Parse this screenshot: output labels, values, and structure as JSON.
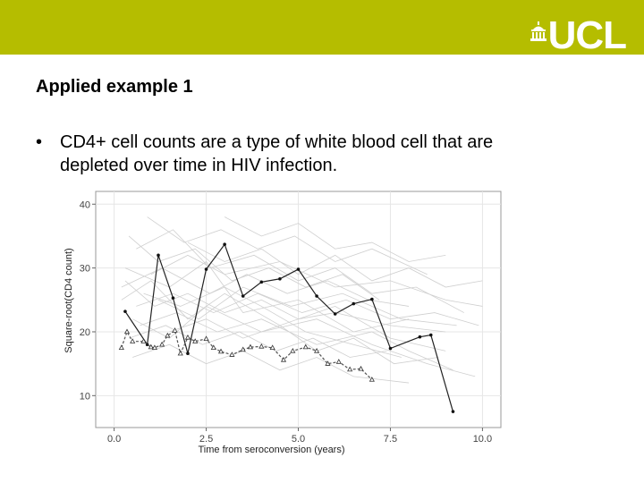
{
  "header": {
    "logo_text": "UCL"
  },
  "slide": {
    "title": "Applied example 1",
    "bullet_symbol": "•",
    "bullet_text": "CD4+ cell counts are a type of white blood cell that are depleted over time in HIV infection."
  },
  "colors": {
    "banner": "#b5bd00",
    "series_solid": "#222222",
    "series_dashed": "#555555",
    "spaghetti": "#cfcfcf"
  },
  "chart_data": {
    "type": "line",
    "xlabel": "Time from seroconversion (years)",
    "ylabel": "Square-root(CD4 count)",
    "xlim": [
      -0.5,
      10.5
    ],
    "ylim": [
      5,
      42
    ],
    "x_ticks": [
      0.0,
      2.5,
      5.0,
      7.5,
      10.0
    ],
    "x_tick_labels": [
      "0.0",
      "2.5",
      "5.0",
      "7.5",
      "10.0"
    ],
    "y_ticks": [
      10,
      20,
      30,
      40
    ],
    "y_tick_labels": [
      "10",
      "20",
      "30",
      "40"
    ],
    "grid": true,
    "series": [
      {
        "style": "solid-circle",
        "points": [
          [
            0.3,
            23.2
          ],
          [
            0.9,
            18.0
          ],
          [
            1.2,
            32.0
          ],
          [
            1.6,
            25.3
          ],
          [
            2.0,
            16.6
          ],
          [
            2.5,
            29.8
          ],
          [
            3.0,
            33.7
          ],
          [
            3.5,
            25.6
          ],
          [
            4.0,
            27.8
          ],
          [
            4.5,
            28.3
          ],
          [
            5.0,
            29.8
          ],
          [
            5.5,
            25.6
          ],
          [
            6.0,
            22.8
          ],
          [
            6.5,
            24.4
          ],
          [
            7.0,
            25.1
          ],
          [
            7.5,
            17.4
          ],
          [
            8.3,
            19.2
          ],
          [
            8.6,
            19.5
          ],
          [
            9.2,
            7.5
          ]
        ]
      },
      {
        "style": "dashed-triangle",
        "points": [
          [
            0.2,
            17.5
          ],
          [
            0.35,
            20.0
          ],
          [
            0.5,
            18.5
          ],
          [
            0.8,
            18.5
          ],
          [
            1.0,
            17.6
          ],
          [
            1.1,
            17.5
          ],
          [
            1.3,
            18.0
          ],
          [
            1.45,
            19.4
          ],
          [
            1.65,
            20.2
          ],
          [
            1.8,
            16.6
          ],
          [
            2.0,
            19.1
          ],
          [
            2.2,
            18.5
          ],
          [
            2.5,
            18.9
          ],
          [
            2.7,
            17.5
          ],
          [
            2.9,
            16.9
          ],
          [
            3.2,
            16.4
          ],
          [
            3.5,
            17.2
          ],
          [
            3.7,
            17.6
          ],
          [
            4.0,
            17.7
          ],
          [
            4.3,
            17.5
          ],
          [
            4.6,
            15.6
          ],
          [
            4.85,
            17.0
          ],
          [
            5.2,
            17.6
          ],
          [
            5.5,
            17.0
          ],
          [
            5.8,
            15.0
          ],
          [
            6.1,
            15.3
          ],
          [
            6.4,
            14.1
          ],
          [
            6.7,
            14.2
          ],
          [
            7.0,
            12.5
          ]
        ]
      }
    ],
    "background_series": [
      [
        [
          0.2,
          25
        ],
        [
          1.0,
          28
        ],
        [
          2.0,
          22
        ],
        [
          3.0,
          26
        ],
        [
          4.5,
          21
        ],
        [
          6.0,
          24
        ],
        [
          7.5,
          19
        ],
        [
          9.0,
          17
        ]
      ],
      [
        [
          0.3,
          30
        ],
        [
          1.5,
          27
        ],
        [
          2.5,
          31
        ],
        [
          3.5,
          23
        ],
        [
          5.0,
          25
        ],
        [
          6.5,
          20
        ],
        [
          8.0,
          22
        ]
      ],
      [
        [
          0.5,
          22
        ],
        [
          1.5,
          19
        ],
        [
          2.5,
          24
        ],
        [
          4.0,
          20
        ],
        [
          5.5,
          22
        ],
        [
          7.0,
          18
        ],
        [
          8.5,
          15
        ],
        [
          9.8,
          13
        ]
      ],
      [
        [
          0.4,
          35
        ],
        [
          1.2,
          31
        ],
        [
          2.2,
          33
        ],
        [
          3.2,
          28
        ],
        [
          4.2,
          30
        ],
        [
          5.2,
          27
        ],
        [
          6.2,
          29
        ],
        [
          7.2,
          25
        ]
      ],
      [
        [
          0.8,
          26
        ],
        [
          1.8,
          24
        ],
        [
          3.0,
          27
        ],
        [
          4.0,
          24
        ],
        [
          5.2,
          20
        ],
        [
          6.5,
          18
        ],
        [
          7.8,
          16
        ]
      ],
      [
        [
          0.6,
          33
        ],
        [
          1.6,
          36
        ],
        [
          2.6,
          30
        ],
        [
          3.8,
          32
        ],
        [
          5.0,
          28
        ],
        [
          6.0,
          30
        ],
        [
          7.0,
          26
        ],
        [
          8.2,
          27
        ],
        [
          9.5,
          23
        ]
      ],
      [
        [
          0.7,
          21
        ],
        [
          1.7,
          23
        ],
        [
          2.8,
          20
        ],
        [
          4.0,
          22
        ],
        [
          5.5,
          18
        ],
        [
          7.0,
          20
        ],
        [
          8.0,
          17
        ],
        [
          9.2,
          14
        ]
      ],
      [
        [
          0.3,
          28
        ],
        [
          1.1,
          24
        ],
        [
          2.0,
          26
        ],
        [
          3.0,
          23
        ],
        [
          4.0,
          25
        ],
        [
          5.0,
          22
        ],
        [
          6.0,
          23
        ],
        [
          7.5,
          21
        ],
        [
          9.0,
          20
        ]
      ],
      [
        [
          1.0,
          29
        ],
        [
          2.0,
          32
        ],
        [
          3.0,
          29
        ],
        [
          4.5,
          31
        ],
        [
          6.0,
          27
        ],
        [
          7.5,
          28
        ],
        [
          9.0,
          25
        ],
        [
          10.0,
          24
        ]
      ],
      [
        [
          0.4,
          19
        ],
        [
          1.4,
          21
        ],
        [
          2.4,
          18
        ],
        [
          3.4,
          20
        ],
        [
          4.4,
          17
        ],
        [
          5.4,
          19
        ],
        [
          6.4,
          16
        ],
        [
          7.4,
          17
        ]
      ],
      [
        [
          0.9,
          38
        ],
        [
          1.9,
          34
        ],
        [
          2.9,
          36
        ],
        [
          3.9,
          33
        ],
        [
          4.9,
          35
        ],
        [
          6.0,
          31
        ],
        [
          7.0,
          33
        ],
        [
          8.5,
          29
        ]
      ],
      [
        [
          1.2,
          25
        ],
        [
          2.3,
          22
        ],
        [
          3.5,
          27
        ],
        [
          4.8,
          24
        ],
        [
          6.2,
          26
        ],
        [
          7.8,
          22
        ],
        [
          9.3,
          21
        ]
      ],
      [
        [
          0.5,
          16
        ],
        [
          1.5,
          18
        ],
        [
          2.5,
          15
        ],
        [
          3.5,
          17
        ],
        [
          4.5,
          14
        ],
        [
          5.5,
          16
        ],
        [
          6.5,
          13
        ],
        [
          8.0,
          12
        ]
      ],
      [
        [
          2.0,
          34
        ],
        [
          3.0,
          31
        ],
        [
          4.0,
          33
        ],
        [
          5.0,
          29
        ],
        [
          6.0,
          32
        ],
        [
          7.0,
          28
        ],
        [
          8.0,
          30
        ],
        [
          9.0,
          27
        ],
        [
          10.0,
          28
        ]
      ],
      [
        [
          0.2,
          27
        ],
        [
          1.3,
          30
        ],
        [
          2.6,
          26
        ],
        [
          3.6,
          29
        ],
        [
          4.7,
          26
        ],
        [
          5.8,
          28
        ],
        [
          6.9,
          25
        ],
        [
          8.0,
          24
        ]
      ],
      [
        [
          1.5,
          20
        ],
        [
          2.5,
          22
        ],
        [
          3.5,
          19
        ],
        [
          4.5,
          21
        ],
        [
          5.5,
          17
        ],
        [
          6.5,
          19
        ],
        [
          7.6,
          15
        ],
        [
          8.8,
          16
        ]
      ],
      [
        [
          0.6,
          24
        ],
        [
          1.6,
          26
        ],
        [
          2.7,
          23
        ],
        [
          3.9,
          26
        ],
        [
          5.1,
          23
        ],
        [
          6.3,
          25
        ],
        [
          7.5,
          22
        ],
        [
          8.7,
          23
        ],
        [
          9.9,
          21
        ]
      ],
      [
        [
          3.0,
          38
        ],
        [
          4.0,
          35
        ],
        [
          5.0,
          37
        ],
        [
          6.0,
          33
        ],
        [
          7.0,
          34
        ],
        [
          8.0,
          31
        ],
        [
          9.0,
          32
        ]
      ]
    ]
  }
}
